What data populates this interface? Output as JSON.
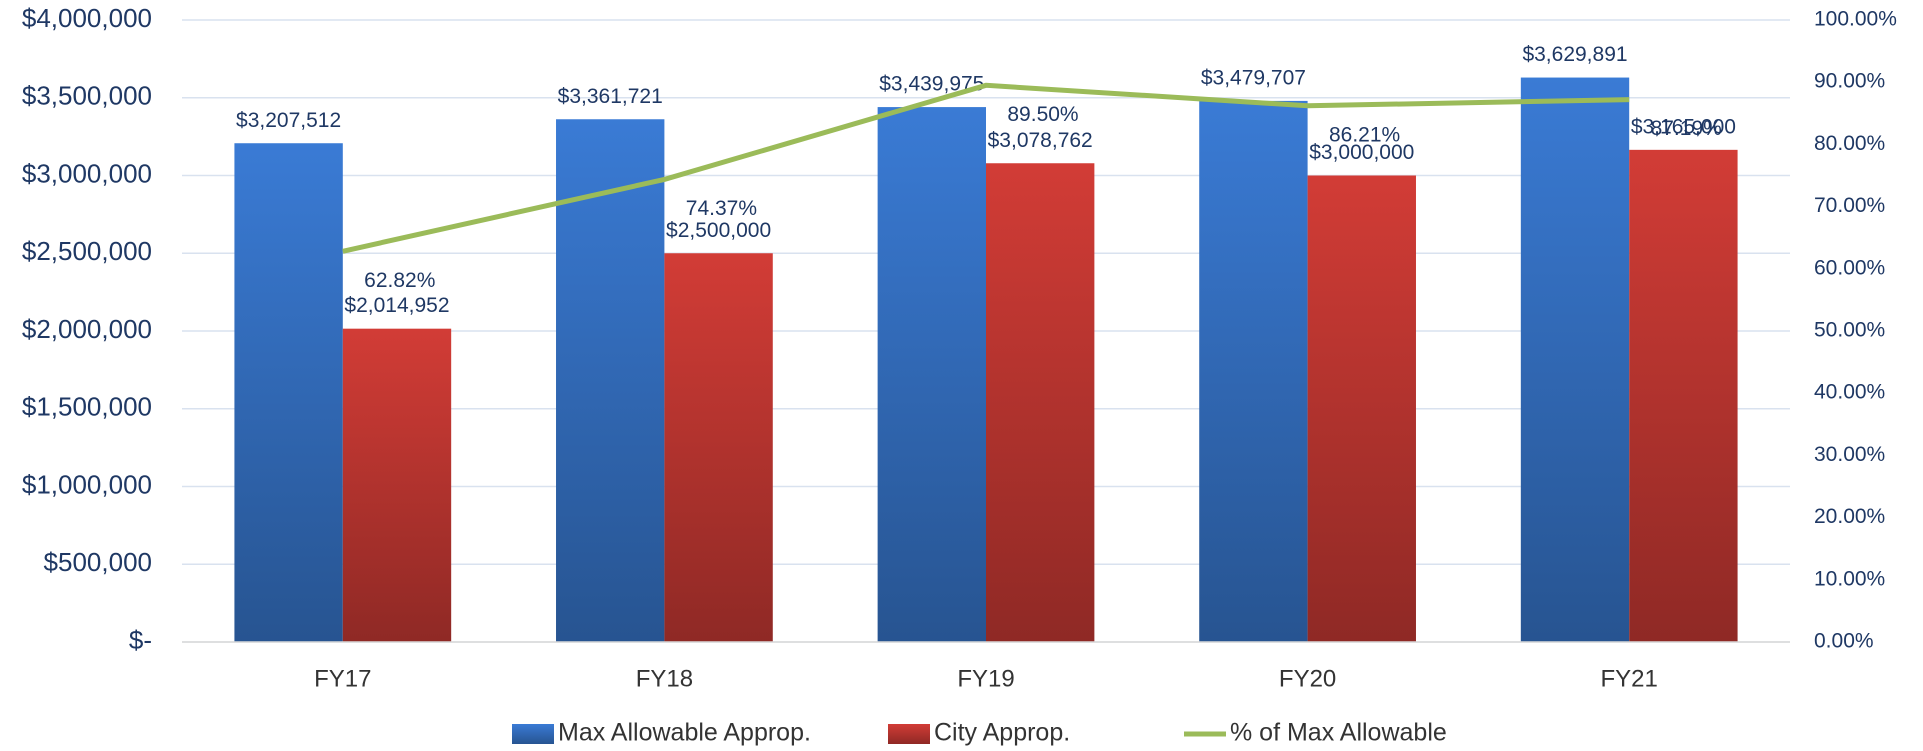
{
  "chart_data": {
    "type": "bar",
    "categories": [
      "FY17",
      "FY18",
      "FY19",
      "FY20",
      "FY21"
    ],
    "series": [
      {
        "name": "Max Allowable Approp.",
        "color": "#3a7bd5",
        "values": [
          3207512,
          3361721,
          3439975,
          3479707,
          3629891
        ],
        "value_labels": [
          "$3,207,512",
          "$3,361,721",
          "$3,439,975",
          "$3,479,707",
          "$3,629,891"
        ]
      },
      {
        "name": "City Approp.",
        "color": "#d23c36",
        "values": [
          2014952,
          2500000,
          3078762,
          3000000,
          3165000
        ],
        "value_labels": [
          "$2,014,952",
          "$2,500,000",
          "$3,078,762",
          "$3,000,000",
          "$3,165,000"
        ]
      },
      {
        "name": "% of Max Allowable",
        "type": "line",
        "axis": "y2",
        "color": "#9bbb59",
        "values": [
          62.82,
          74.37,
          89.5,
          86.21,
          87.19
        ],
        "value_labels": [
          "62.82%",
          "74.37%",
          "89.50%",
          "86.21%",
          "87.19%"
        ]
      }
    ],
    "ylim": [
      0,
      4000000
    ],
    "yticks": [
      {
        "value": 0,
        "label": "$-"
      },
      {
        "value": 500000,
        "label": "$500,000"
      },
      {
        "value": 1000000,
        "label": "$1,000,000"
      },
      {
        "value": 1500000,
        "label": "$1,500,000"
      },
      {
        "value": 2000000,
        "label": "$2,000,000"
      },
      {
        "value": 2500000,
        "label": "$2,500,000"
      },
      {
        "value": 3000000,
        "label": "$3,000,000"
      },
      {
        "value": 3500000,
        "label": "$3,500,000"
      },
      {
        "value": 4000000,
        "label": "$4,000,000"
      }
    ],
    "y2lim": [
      0,
      100
    ],
    "y2ticks": [
      {
        "value": 0,
        "label": "0.00%"
      },
      {
        "value": 10,
        "label": "10.00%"
      },
      {
        "value": 20,
        "label": "20.00%"
      },
      {
        "value": 30,
        "label": "30.00%"
      },
      {
        "value": 40,
        "label": "40.00%"
      },
      {
        "value": 50,
        "label": "50.00%"
      },
      {
        "value": 60,
        "label": "60.00%"
      },
      {
        "value": 70,
        "label": "70.00%"
      },
      {
        "value": 80,
        "label": "80.00%"
      },
      {
        "value": 90,
        "label": "90.00%"
      },
      {
        "value": 100,
        "label": "100.00%"
      }
    ],
    "grid": true,
    "legend": "bottom"
  }
}
